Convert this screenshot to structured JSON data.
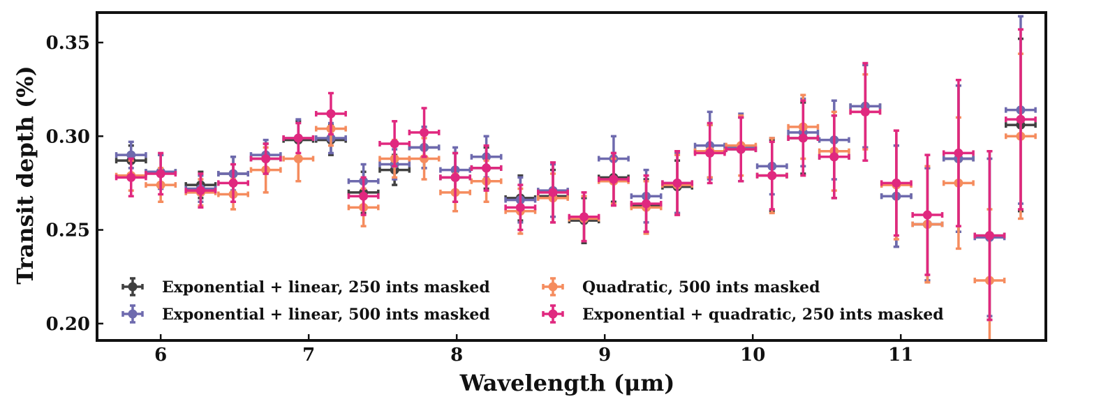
{
  "chart_data": {
    "type": "scatter",
    "title": "",
    "xlabel": "Wavelength (μm)",
    "ylabel": "Transit depth (%)",
    "xlim": [
      5.57,
      11.98
    ],
    "ylim": [
      0.191,
      0.366
    ],
    "xticks": [
      6,
      7,
      8,
      9,
      10,
      11
    ],
    "xtick_labels": [
      "6",
      "7",
      "8",
      "9",
      "10",
      "11"
    ],
    "yticks": [
      0.2,
      0.25,
      0.3,
      0.35
    ],
    "ytick_labels": [
      "0.20",
      "0.25",
      "0.30",
      "0.35"
    ],
    "grid": false,
    "legend_position": "lower-left",
    "series": [
      {
        "name": "Exponential + linear,  250 ints masked",
        "color": "#404040",
        "x": [
          5.8,
          6.0,
          6.27,
          6.49,
          6.71,
          6.93,
          7.15,
          7.37,
          7.58,
          7.78,
          7.99,
          8.2,
          8.43,
          8.65,
          8.86,
          9.06,
          9.28,
          9.49,
          9.71,
          9.92,
          10.13,
          10.34,
          10.55,
          10.76,
          10.97,
          11.18,
          11.39,
          11.6,
          11.81
        ],
        "y": [
          0.287,
          0.281,
          0.274,
          0.28,
          0.288,
          0.298,
          0.298,
          0.27,
          0.282,
          0.294,
          0.278,
          0.283,
          0.267,
          0.268,
          0.255,
          0.278,
          0.263,
          0.273,
          0.292,
          0.293,
          0.279,
          0.299,
          0.289,
          0.316,
          0.268,
          0.253,
          0.288,
          0.247,
          0.306
        ],
        "xerr": [
          0.1,
          0.1,
          0.1,
          0.1,
          0.1,
          0.1,
          0.1,
          0.1,
          0.1,
          0.1,
          0.1,
          0.1,
          0.1,
          0.1,
          0.1,
          0.1,
          0.1,
          0.1,
          0.1,
          0.1,
          0.1,
          0.1,
          0.1,
          0.1,
          0.1,
          0.1,
          0.1,
          0.1,
          0.1
        ],
        "yerr": [
          0.008,
          0.009,
          0.007,
          0.009,
          0.008,
          0.01,
          0.008,
          0.011,
          0.008,
          0.011,
          0.013,
          0.011,
          0.012,
          0.014,
          0.012,
          0.013,
          0.014,
          0.014,
          0.014,
          0.017,
          0.019,
          0.019,
          0.022,
          0.022,
          0.027,
          0.03,
          0.039,
          0.045,
          0.046
        ]
      },
      {
        "name": "Exponential + linear,  500 ints masked",
        "color": "#6e6aae",
        "x": [
          5.8,
          6.0,
          6.27,
          6.49,
          6.71,
          6.93,
          7.15,
          7.37,
          7.58,
          7.78,
          7.99,
          8.2,
          8.43,
          8.65,
          8.86,
          9.06,
          9.28,
          9.49,
          9.71,
          9.92,
          10.13,
          10.34,
          10.55,
          10.76,
          10.97,
          11.18,
          11.39,
          11.6,
          11.81
        ],
        "y": [
          0.29,
          0.281,
          0.272,
          0.28,
          0.29,
          0.299,
          0.299,
          0.276,
          0.285,
          0.294,
          0.282,
          0.289,
          0.266,
          0.271,
          0.256,
          0.288,
          0.268,
          0.275,
          0.295,
          0.294,
          0.284,
          0.302,
          0.298,
          0.316,
          0.268,
          0.253,
          0.288,
          0.246,
          0.314
        ],
        "xerr": [
          0.1,
          0.1,
          0.1,
          0.1,
          0.1,
          0.1,
          0.1,
          0.1,
          0.1,
          0.1,
          0.1,
          0.1,
          0.1,
          0.1,
          0.1,
          0.1,
          0.1,
          0.1,
          0.1,
          0.1,
          0.1,
          0.1,
          0.1,
          0.1,
          0.1,
          0.1,
          0.1,
          0.1,
          0.1
        ],
        "yerr": [
          0.007,
          0.009,
          0.007,
          0.009,
          0.008,
          0.01,
          0.008,
          0.009,
          0.008,
          0.011,
          0.012,
          0.011,
          0.012,
          0.014,
          0.012,
          0.012,
          0.014,
          0.016,
          0.018,
          0.018,
          0.015,
          0.018,
          0.021,
          0.022,
          0.027,
          0.03,
          0.039,
          0.042,
          0.05
        ]
      },
      {
        "name": "Quadratic,  500 ints masked",
        "color": "#f58c5e",
        "x": [
          5.8,
          6.0,
          6.27,
          6.49,
          6.71,
          6.93,
          7.15,
          7.37,
          7.58,
          7.78,
          7.99,
          8.2,
          8.43,
          8.65,
          8.86,
          9.06,
          9.28,
          9.49,
          9.71,
          9.92,
          10.13,
          10.34,
          10.55,
          10.76,
          10.97,
          11.18,
          11.39,
          11.6,
          11.81
        ],
        "y": [
          0.279,
          0.274,
          0.27,
          0.269,
          0.282,
          0.288,
          0.304,
          0.262,
          0.288,
          0.288,
          0.27,
          0.276,
          0.26,
          0.267,
          0.256,
          0.276,
          0.262,
          0.274,
          0.292,
          0.295,
          0.279,
          0.305,
          0.292,
          0.313,
          0.274,
          0.253,
          0.275,
          0.223,
          0.3
        ],
        "xerr": [
          0.1,
          0.1,
          0.1,
          0.1,
          0.1,
          0.1,
          0.1,
          0.1,
          0.1,
          0.1,
          0.1,
          0.1,
          0.1,
          0.1,
          0.1,
          0.1,
          0.1,
          0.1,
          0.1,
          0.1,
          0.1,
          0.1,
          0.1,
          0.1,
          0.1,
          0.1,
          0.1,
          0.1,
          0.1
        ],
        "yerr": [
          0.008,
          0.009,
          0.007,
          0.008,
          0.012,
          0.012,
          0.009,
          0.01,
          0.01,
          0.011,
          0.01,
          0.011,
          0.012,
          0.013,
          0.012,
          0.012,
          0.014,
          0.016,
          0.014,
          0.016,
          0.02,
          0.017,
          0.021,
          0.02,
          0.029,
          0.031,
          0.035,
          0.038,
          0.044
        ]
      },
      {
        "name": "Exponential + quadratic,  250 ints masked",
        "color": "#e0287f",
        "x": [
          5.8,
          6.0,
          6.27,
          6.49,
          6.71,
          6.93,
          7.15,
          7.37,
          7.58,
          7.78,
          7.99,
          8.2,
          8.43,
          8.65,
          8.86,
          9.06,
          9.28,
          9.49,
          9.71,
          9.92,
          10.13,
          10.34,
          10.55,
          10.76,
          10.97,
          11.18,
          11.39,
          11.6,
          11.81
        ],
        "y": [
          0.278,
          0.28,
          0.271,
          0.275,
          0.288,
          0.299,
          0.312,
          0.268,
          0.296,
          0.302,
          0.278,
          0.283,
          0.262,
          0.27,
          0.257,
          0.277,
          0.264,
          0.275,
          0.291,
          0.293,
          0.279,
          0.299,
          0.289,
          0.313,
          0.275,
          0.258,
          0.291,
          0.247,
          0.309
        ],
        "xerr": [
          0.1,
          0.1,
          0.1,
          0.1,
          0.1,
          0.1,
          0.1,
          0.1,
          0.1,
          0.1,
          0.1,
          0.1,
          0.1,
          0.1,
          0.1,
          0.1,
          0.1,
          0.1,
          0.1,
          0.1,
          0.1,
          0.1,
          0.1,
          0.1,
          0.1,
          0.1,
          0.1,
          0.1,
          0.1
        ],
        "yerr": [
          0.01,
          0.011,
          0.009,
          0.01,
          0.008,
          0.008,
          0.011,
          0.01,
          0.012,
          0.013,
          0.013,
          0.012,
          0.012,
          0.016,
          0.013,
          0.014,
          0.015,
          0.017,
          0.016,
          0.017,
          0.018,
          0.02,
          0.022,
          0.026,
          0.028,
          0.032,
          0.039,
          0.045,
          0.048
        ]
      }
    ]
  }
}
